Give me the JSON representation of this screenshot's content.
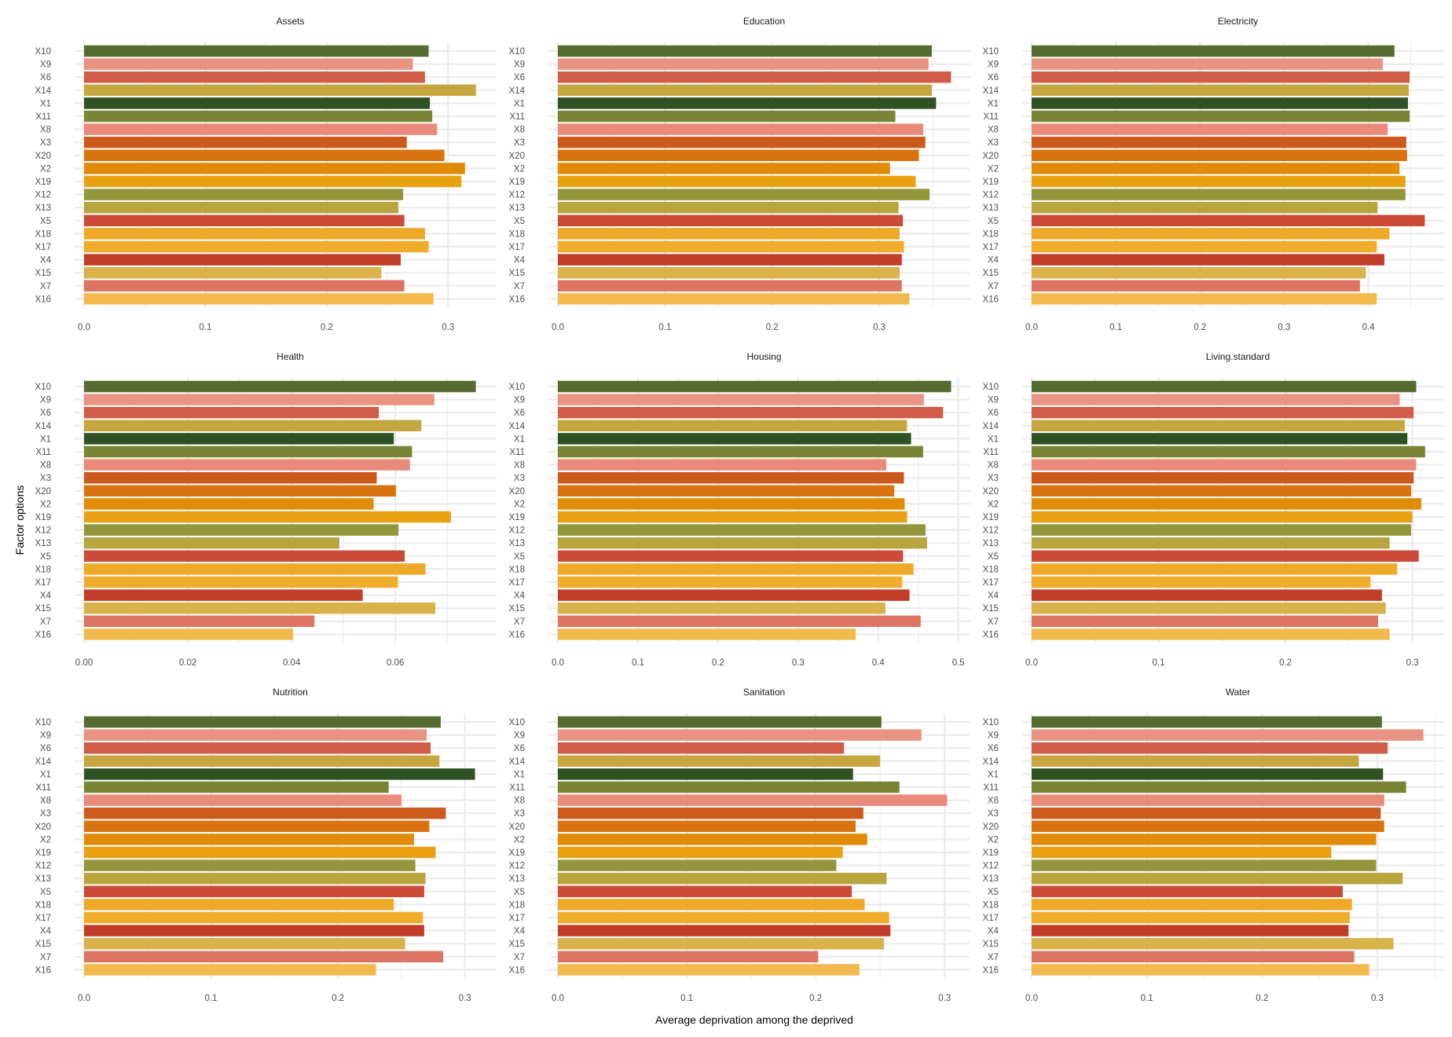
{
  "figure": {
    "xlabel": "Average deprivation among the deprived",
    "ylabel": "Factor options"
  },
  "colors": {
    "X10": "#566b2f",
    "X9": "#e99383",
    "X6": "#d15d48",
    "X14": "#c6a73f",
    "X1": "#2f5224",
    "X11": "#7a8435",
    "X8": "#e98a7a",
    "X3": "#cb5a1c",
    "X20": "#d9730f",
    "X2": "#e08c09",
    "X19": "#e9a112",
    "X12": "#93963a",
    "X13": "#b9a53e",
    "X5": "#cb4a38",
    "X18": "#eea929",
    "X17": "#f0ad2c",
    "X4": "#c23d28",
    "X15": "#d9b24a",
    "X7": "#de7462",
    "X16": "#f2ba4e",
    "grid": "#ebebeb",
    "background": "#ffffff"
  },
  "chart_data": [
    {
      "type": "bar",
      "orientation": "horizontal",
      "title": "Assets",
      "categories": [
        "X10",
        "X9",
        "X6",
        "X14",
        "X1",
        "X11",
        "X8",
        "X3",
        "X20",
        "X2",
        "X19",
        "X12",
        "X13",
        "X5",
        "X18",
        "X17",
        "X4",
        "X15",
        "X7",
        "X16"
      ],
      "values": [
        0.284,
        0.271,
        0.281,
        0.323,
        0.285,
        0.287,
        0.291,
        0.266,
        0.297,
        0.314,
        0.311,
        0.263,
        0.259,
        0.264,
        0.281,
        0.284,
        0.261,
        0.245,
        0.264,
        0.288
      ],
      "xticks": [
        0.0,
        0.1,
        0.2,
        0.3
      ],
      "xtick_labels": [
        "0.0",
        "0.1",
        "0.2",
        "0.3"
      ],
      "xlim": [
        0,
        0.34
      ],
      "grid": true
    },
    {
      "type": "bar",
      "orientation": "horizontal",
      "title": "Education",
      "categories": [
        "X10",
        "X9",
        "X6",
        "X14",
        "X1",
        "X11",
        "X8",
        "X3",
        "X20",
        "X2",
        "X19",
        "X12",
        "X13",
        "X5",
        "X18",
        "X17",
        "X4",
        "X15",
        "X7",
        "X16"
      ],
      "values": [
        0.349,
        0.346,
        0.367,
        0.349,
        0.353,
        0.315,
        0.341,
        0.343,
        0.337,
        0.31,
        0.334,
        0.347,
        0.318,
        0.322,
        0.319,
        0.323,
        0.321,
        0.319,
        0.321,
        0.328
      ],
      "xticks": [
        0.0,
        0.1,
        0.2,
        0.3
      ],
      "xtick_labels": [
        "0.0",
        "0.1",
        "0.2",
        "0.3"
      ],
      "xlim": [
        0,
        0.385
      ],
      "grid": true
    },
    {
      "type": "bar",
      "orientation": "horizontal",
      "title": "Electricity",
      "categories": [
        "X10",
        "X9",
        "X6",
        "X14",
        "X1",
        "X11",
        "X8",
        "X3",
        "X20",
        "X2",
        "X19",
        "X12",
        "X13",
        "X5",
        "X18",
        "X17",
        "X4",
        "X15",
        "X7",
        "X16"
      ],
      "values": [
        0.431,
        0.417,
        0.449,
        0.448,
        0.447,
        0.449,
        0.423,
        0.445,
        0.446,
        0.437,
        0.444,
        0.444,
        0.411,
        0.467,
        0.425,
        0.41,
        0.419,
        0.397,
        0.39,
        0.41
      ],
      "xticks": [
        0.0,
        0.1,
        0.2,
        0.3,
        0.4
      ],
      "xtick_labels": [
        "0.0",
        "0.1",
        "0.2",
        "0.3",
        "0.4"
      ],
      "xlim": [
        0,
        0.49
      ],
      "grid": true
    },
    {
      "type": "bar",
      "orientation": "horizontal",
      "title": "Health",
      "categories": [
        "X10",
        "X9",
        "X6",
        "X14",
        "X1",
        "X11",
        "X8",
        "X3",
        "X20",
        "X2",
        "X19",
        "X12",
        "X13",
        "X5",
        "X18",
        "X17",
        "X4",
        "X15",
        "X7",
        "X16"
      ],
      "values": [
        0.0755,
        0.0675,
        0.0568,
        0.065,
        0.0597,
        0.0632,
        0.0628,
        0.0564,
        0.0601,
        0.0558,
        0.0707,
        0.0606,
        0.0492,
        0.0618,
        0.0658,
        0.0605,
        0.0537,
        0.0677,
        0.0444,
        0.0403
      ],
      "xticks": [
        0.0,
        0.02,
        0.04,
        0.06
      ],
      "xtick_labels": [
        "0.00",
        "0.02",
        "0.04",
        "0.06"
      ],
      "xlim": [
        0,
        0.0795
      ],
      "grid": true
    },
    {
      "type": "bar",
      "orientation": "horizontal",
      "title": "Housing",
      "categories": [
        "X10",
        "X9",
        "X6",
        "X14",
        "X1",
        "X11",
        "X8",
        "X3",
        "X20",
        "X2",
        "X19",
        "X12",
        "X13",
        "X5",
        "X18",
        "X17",
        "X4",
        "X15",
        "X7",
        "X16"
      ],
      "values": [
        0.491,
        0.457,
        0.481,
        0.436,
        0.441,
        0.456,
        0.41,
        0.432,
        0.42,
        0.433,
        0.436,
        0.459,
        0.461,
        0.431,
        0.444,
        0.43,
        0.439,
        0.409,
        0.453,
        0.372
      ],
      "xticks": [
        0.0,
        0.1,
        0.2,
        0.3,
        0.4,
        0.5
      ],
      "xtick_labels": [
        "0.0",
        "0.1",
        "0.2",
        "0.3",
        "0.4",
        "0.5"
      ],
      "xlim": [
        0,
        0.515
      ],
      "grid": true
    },
    {
      "type": "bar",
      "orientation": "horizontal",
      "title": "Living.standard",
      "categories": [
        "X10",
        "X9",
        "X6",
        "X14",
        "X1",
        "X11",
        "X8",
        "X3",
        "X20",
        "X2",
        "X19",
        "X12",
        "X13",
        "X5",
        "X18",
        "X17",
        "X4",
        "X15",
        "X7",
        "X16"
      ],
      "values": [
        0.303,
        0.29,
        0.301,
        0.294,
        0.296,
        0.31,
        0.303,
        0.301,
        0.299,
        0.307,
        0.3,
        0.299,
        0.282,
        0.305,
        0.288,
        0.267,
        0.276,
        0.279,
        0.273,
        0.282
      ],
      "xticks": [
        0.0,
        0.1,
        0.2,
        0.3
      ],
      "xtick_labels": [
        "0.0",
        "0.1",
        "0.2",
        "0.3"
      ],
      "xlim": [
        0,
        0.325
      ],
      "grid": true
    },
    {
      "type": "bar",
      "orientation": "horizontal",
      "title": "Nutrition",
      "categories": [
        "X10",
        "X9",
        "X6",
        "X14",
        "X1",
        "X11",
        "X8",
        "X3",
        "X20",
        "X2",
        "X19",
        "X12",
        "X13",
        "X5",
        "X18",
        "X17",
        "X4",
        "X15",
        "X7",
        "X16"
      ],
      "values": [
        0.281,
        0.27,
        0.273,
        0.28,
        0.308,
        0.24,
        0.25,
        0.285,
        0.272,
        0.26,
        0.277,
        0.261,
        0.269,
        0.268,
        0.244,
        0.267,
        0.268,
        0.253,
        0.283,
        0.23
      ],
      "xticks": [
        0.0,
        0.1,
        0.2,
        0.3
      ],
      "xtick_labels": [
        "0.0",
        "0.1",
        "0.2",
        "0.3"
      ],
      "xlim": [
        0,
        0.325
      ],
      "grid": true
    },
    {
      "type": "bar",
      "orientation": "horizontal",
      "title": "Sanitation",
      "categories": [
        "X10",
        "X9",
        "X6",
        "X14",
        "X1",
        "X11",
        "X8",
        "X3",
        "X20",
        "X2",
        "X19",
        "X12",
        "X13",
        "X5",
        "X18",
        "X17",
        "X4",
        "X15",
        "X7",
        "X16"
      ],
      "values": [
        0.251,
        0.282,
        0.222,
        0.25,
        0.229,
        0.265,
        0.302,
        0.237,
        0.231,
        0.24,
        0.221,
        0.216,
        0.255,
        0.228,
        0.238,
        0.257,
        0.258,
        0.253,
        0.202,
        0.234
      ],
      "xticks": [
        0.0,
        0.1,
        0.2,
        0.3
      ],
      "xtick_labels": [
        "0.0",
        "0.1",
        "0.2",
        "0.3"
      ],
      "xlim": [
        0,
        0.32
      ],
      "grid": true
    },
    {
      "type": "bar",
      "orientation": "horizontal",
      "title": "Water",
      "categories": [
        "X10",
        "X9",
        "X6",
        "X14",
        "X1",
        "X11",
        "X8",
        "X3",
        "X20",
        "X2",
        "X19",
        "X12",
        "X13",
        "X5",
        "X18",
        "X17",
        "X4",
        "X15",
        "X7",
        "X16"
      ],
      "values": [
        0.304,
        0.34,
        0.309,
        0.284,
        0.305,
        0.325,
        0.306,
        0.303,
        0.306,
        0.299,
        0.26,
        0.299,
        0.322,
        0.27,
        0.278,
        0.276,
        0.275,
        0.314,
        0.28,
        0.293
      ],
      "xticks": [
        0.0,
        0.1,
        0.2,
        0.3
      ],
      "xtick_labels": [
        "0.0",
        "0.1",
        "0.2",
        "0.3"
      ],
      "xlim": [
        0,
        0.358
      ],
      "grid": true
    }
  ]
}
